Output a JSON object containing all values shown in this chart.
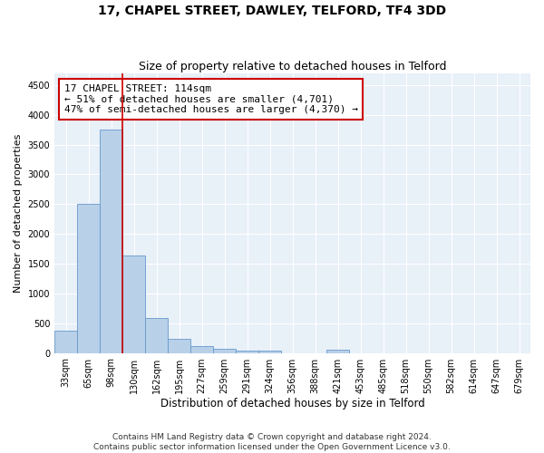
{
  "title": "17, CHAPEL STREET, DAWLEY, TELFORD, TF4 3DD",
  "subtitle": "Size of property relative to detached houses in Telford",
  "xlabel": "Distribution of detached houses by size in Telford",
  "ylabel": "Number of detached properties",
  "categories": [
    "33sqm",
    "65sqm",
    "98sqm",
    "130sqm",
    "162sqm",
    "195sqm",
    "227sqm",
    "259sqm",
    "291sqm",
    "324sqm",
    "356sqm",
    "388sqm",
    "421sqm",
    "453sqm",
    "485sqm",
    "518sqm",
    "550sqm",
    "582sqm",
    "614sqm",
    "647sqm",
    "679sqm"
  ],
  "values": [
    375,
    2500,
    3750,
    1640,
    590,
    230,
    110,
    70,
    40,
    40,
    0,
    0,
    60,
    0,
    0,
    0,
    0,
    0,
    0,
    0,
    0
  ],
  "bar_color": "#b8d0e8",
  "bar_edge_color": "#6699cc",
  "property_line_index": 2,
  "property_line_color": "#cc0000",
  "annotation_line1": "17 CHAPEL STREET: 114sqm",
  "annotation_line2": "← 51% of detached houses are smaller (4,701)",
  "annotation_line3": "47% of semi-detached houses are larger (4,370) →",
  "annotation_box_color": "#cc0000",
  "ylim": [
    0,
    4700
  ],
  "yticks": [
    0,
    500,
    1000,
    1500,
    2000,
    2500,
    3000,
    3500,
    4000,
    4500
  ],
  "bg_color": "#e8f0f8",
  "grid_color": "#ffffff",
  "footer_line1": "Contains HM Land Registry data © Crown copyright and database right 2024.",
  "footer_line2": "Contains public sector information licensed under the Open Government Licence v3.0.",
  "title_fontsize": 10,
  "subtitle_fontsize": 9,
  "xlabel_fontsize": 8.5,
  "ylabel_fontsize": 8,
  "tick_fontsize": 7,
  "annotation_fontsize": 8,
  "footer_fontsize": 6.5
}
